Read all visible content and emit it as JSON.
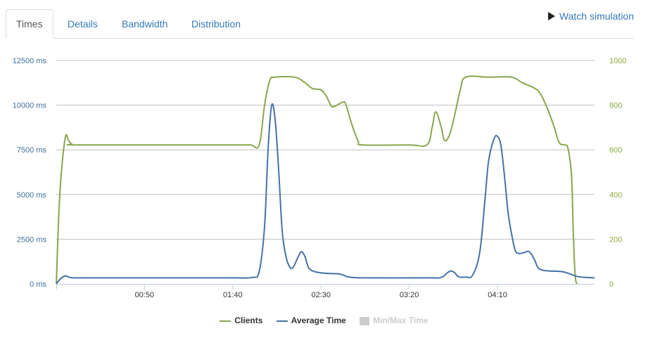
{
  "tabs": [
    {
      "label": "Times",
      "active": true
    },
    {
      "label": "Details",
      "active": false
    },
    {
      "label": "Bandwidth",
      "active": false
    },
    {
      "label": "Distribution",
      "active": false
    }
  ],
  "watch": {
    "label": "Watch simulation",
    "icon": "play-icon"
  },
  "colors": {
    "clients": "#89a54e",
    "average": "#4572a7",
    "minmax": "#cccccc"
  },
  "legend": [
    {
      "label": "Clients",
      "kind": "line",
      "color": "#89a54e",
      "enabled": true
    },
    {
      "label": "Average Time",
      "kind": "line",
      "color": "#4572a7",
      "enabled": true
    },
    {
      "label": "Min/Max Time",
      "kind": "box",
      "color": "#cccccc",
      "enabled": false
    }
  ],
  "chart_data": {
    "type": "line",
    "x_unit": "seconds",
    "x_range": [
      0,
      305
    ],
    "x_ticks": [
      {
        "label": "00:50",
        "value": 50
      },
      {
        "label": "01:40",
        "value": 100
      },
      {
        "label": "02:30",
        "value": 150
      },
      {
        "label": "03:20",
        "value": 200
      },
      {
        "label": "04:10",
        "value": 250
      }
    ],
    "y_left": {
      "min": 0,
      "max": 12500,
      "ticks": [
        {
          "label": "0 ms",
          "value": 0
        },
        {
          "label": "2500 ms",
          "value": 2500
        },
        {
          "label": "5000 ms",
          "value": 5000
        },
        {
          "label": "7500 ms",
          "value": 7500
        },
        {
          "label": "10000 ms",
          "value": 10000
        },
        {
          "label": "12500 ms",
          "value": 12500
        }
      ]
    },
    "y_right": {
      "min": 0,
      "max": 1000,
      "ticks": [
        {
          "label": "0",
          "value": 0
        },
        {
          "label": "200",
          "value": 200
        },
        {
          "label": "400",
          "value": 400
        },
        {
          "label": "600",
          "value": 600
        },
        {
          "label": "800",
          "value": 800
        },
        {
          "label": "1000",
          "value": 1000
        }
      ]
    },
    "grid": true,
    "legend_position": "bottom",
    "series": [
      {
        "name": "Clients",
        "axis": "right",
        "points": [
          [
            0,
            0
          ],
          [
            2,
            400
          ],
          [
            5,
            650
          ],
          [
            7,
            640
          ],
          [
            9,
            625
          ],
          [
            15,
            622
          ],
          [
            100,
            622
          ],
          [
            110,
            622
          ],
          [
            115,
            622
          ],
          [
            118,
            800
          ],
          [
            121,
            910
          ],
          [
            124,
            925
          ],
          [
            135,
            925
          ],
          [
            141,
            900
          ],
          [
            145,
            875
          ],
          [
            150,
            868
          ],
          [
            153,
            840
          ],
          [
            156,
            795
          ],
          [
            159,
            800
          ],
          [
            162,
            812
          ],
          [
            164,
            805
          ],
          [
            167,
            725
          ],
          [
            171,
            640
          ],
          [
            174,
            622
          ],
          [
            200,
            622
          ],
          [
            210,
            622
          ],
          [
            213,
            700
          ],
          [
            215,
            770
          ],
          [
            218,
            705
          ],
          [
            220,
            642
          ],
          [
            223,
            670
          ],
          [
            226,
            765
          ],
          [
            229,
            870
          ],
          [
            232,
            925
          ],
          [
            245,
            925
          ],
          [
            258,
            925
          ],
          [
            264,
            900
          ],
          [
            270,
            880
          ],
          [
            274,
            855
          ],
          [
            278,
            790
          ],
          [
            282,
            705
          ],
          [
            285,
            632
          ],
          [
            288,
            622
          ],
          [
            290,
            605
          ],
          [
            292,
            480
          ],
          [
            293,
            220
          ],
          [
            294,
            40
          ],
          [
            295,
            0
          ]
        ]
      },
      {
        "name": "Average Time",
        "axis": "left",
        "points": [
          [
            0,
            0
          ],
          [
            2,
            250
          ],
          [
            5,
            450
          ],
          [
            7,
            380
          ],
          [
            10,
            340
          ],
          [
            20,
            340
          ],
          [
            40,
            340
          ],
          [
            60,
            340
          ],
          [
            80,
            340
          ],
          [
            100,
            340
          ],
          [
            111,
            360
          ],
          [
            115,
            700
          ],
          [
            118,
            3200
          ],
          [
            120,
            7500
          ],
          [
            122,
            9970
          ],
          [
            124,
            9200
          ],
          [
            126,
            6400
          ],
          [
            128,
            3000
          ],
          [
            130,
            1600
          ],
          [
            132,
            1000
          ],
          [
            134,
            900
          ],
          [
            137,
            1500
          ],
          [
            139,
            1800
          ],
          [
            141,
            1500
          ],
          [
            143,
            900
          ],
          [
            146,
            700
          ],
          [
            150,
            620
          ],
          [
            155,
            580
          ],
          [
            160,
            560
          ],
          [
            163,
            480
          ],
          [
            166,
            380
          ],
          [
            175,
            340
          ],
          [
            210,
            340
          ],
          [
            218,
            360
          ],
          [
            222,
            650
          ],
          [
            224,
            720
          ],
          [
            226,
            600
          ],
          [
            228,
            400
          ],
          [
            232,
            380
          ],
          [
            236,
            500
          ],
          [
            240,
            1800
          ],
          [
            243,
            4800
          ],
          [
            245,
            6900
          ],
          [
            248,
            8100
          ],
          [
            250,
            8250
          ],
          [
            252,
            7700
          ],
          [
            254,
            6000
          ],
          [
            256,
            4000
          ],
          [
            258,
            2800
          ],
          [
            260,
            1900
          ],
          [
            262,
            1700
          ],
          [
            265,
            1750
          ],
          [
            268,
            1800
          ],
          [
            271,
            1350
          ],
          [
            273,
            900
          ],
          [
            276,
            760
          ],
          [
            280,
            720
          ],
          [
            287,
            680
          ],
          [
            291,
            560
          ],
          [
            295,
            420
          ],
          [
            300,
            360
          ],
          [
            305,
            340
          ]
        ]
      }
    ]
  }
}
